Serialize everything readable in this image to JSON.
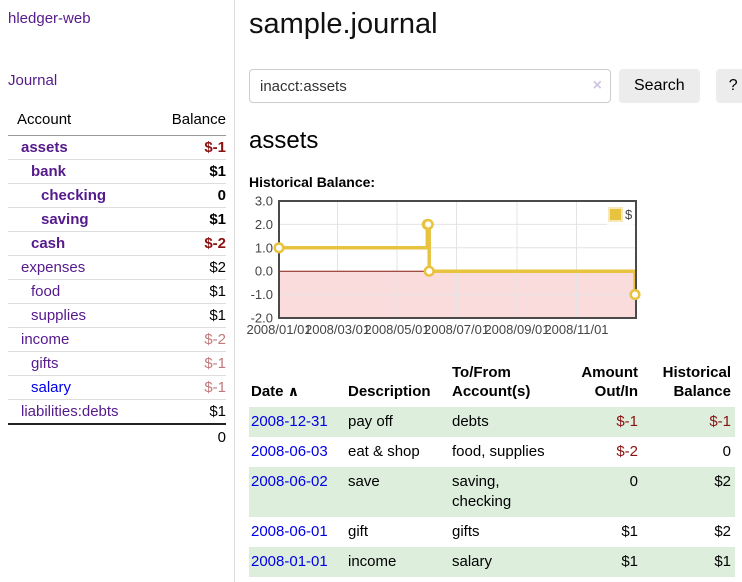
{
  "app": {
    "title": "hledger-web"
  },
  "sidebar": {
    "journal_link": "Journal",
    "accounts_header": {
      "account": "Account",
      "balance": "Balance"
    },
    "accounts": [
      {
        "name": "assets",
        "balance": "$-1",
        "name_class": "acct lvl1 strong",
        "bal_class": "bal neg strong"
      },
      {
        "name": "bank",
        "balance": "$1",
        "name_class": "acct lvl2 strong",
        "bal_class": "bal strong"
      },
      {
        "name": "checking",
        "balance": "0",
        "name_class": "acct lvl3 strong",
        "bal_class": "bal strong"
      },
      {
        "name": "saving",
        "balance": "$1",
        "name_class": "acct lvl3 strong",
        "bal_class": "bal strong"
      },
      {
        "name": "cash",
        "balance": "$-2",
        "name_class": "acct lvl2 strong",
        "bal_class": "bal neg strong"
      },
      {
        "name": "expenses",
        "balance": "$2",
        "name_class": "acct lvl1",
        "bal_class": "bal"
      },
      {
        "name": "food",
        "balance": "$1",
        "name_class": "acct lvl2",
        "bal_class": "bal"
      },
      {
        "name": "supplies",
        "balance": "$1",
        "name_class": "acct lvl2",
        "bal_class": "bal"
      },
      {
        "name": "income",
        "balance": "$-2",
        "name_class": "acct lvl1",
        "bal_class": "bal lightneg"
      },
      {
        "name": "gifts",
        "balance": "$-1",
        "name_class": "acct lvl2",
        "bal_class": "bal lightneg"
      },
      {
        "name": "salary",
        "balance": "$-1",
        "name_class": "acct lvl2 unvisited",
        "bal_class": "bal lightneg"
      },
      {
        "name": "liabilities:debts",
        "balance": "$1",
        "name_class": "acct lvl1",
        "bal_class": "bal"
      }
    ],
    "total": "0"
  },
  "main": {
    "title": "sample.journal",
    "search": {
      "value": "inacct:assets",
      "clear_icon": "×",
      "button": "Search",
      "help_button": "?"
    },
    "account_heading": "assets",
    "chart_label": "Historical Balance:"
  },
  "register": {
    "headers": {
      "date": "Date",
      "sort_icon": "∧",
      "description": "Description",
      "accounts": "To/From Account(s)",
      "amount": "Amount Out/In",
      "balance": "Historical Balance"
    },
    "rows": [
      {
        "date": "2008-12-31",
        "description": "pay off",
        "accounts": "debts",
        "amount": "$-1",
        "amount_class": "amt neg",
        "balance": "$-1",
        "balance_class": "amt neg"
      },
      {
        "date": "2008-06-03",
        "description": "eat & shop",
        "accounts": "food, supplies",
        "amount": "$-2",
        "amount_class": "amt neg",
        "balance": "0",
        "balance_class": "amt"
      },
      {
        "date": "2008-06-02",
        "description": "save",
        "accounts": "saving, checking",
        "amount": "0",
        "amount_class": "amt",
        "balance": "$2",
        "balance_class": "amt"
      },
      {
        "date": "2008-06-01",
        "description": "gift",
        "accounts": "gifts",
        "amount": "$1",
        "amount_class": "amt",
        "balance": "$2",
        "balance_class": "amt"
      },
      {
        "date": "2008-01-01",
        "description": "income",
        "accounts": "salary",
        "amount": "$1",
        "amount_class": "amt",
        "balance": "$1",
        "balance_class": "amt"
      }
    ]
  },
  "chart_data": {
    "type": "line",
    "title": "Historical Balance:",
    "step": true,
    "series": [
      {
        "name": "$",
        "color": "#E8C340",
        "points": [
          [
            "2008-01-01",
            1
          ],
          [
            "2008-06-01",
            2
          ],
          [
            "2008-06-02",
            2
          ],
          [
            "2008-06-03",
            0
          ],
          [
            "2008-12-31",
            -1
          ]
        ]
      }
    ],
    "x_range": [
      "2008-01-01",
      "2009-01-01"
    ],
    "x_ticks": [
      "2008/01/01",
      "2008/03/01",
      "2008/05/01",
      "2008/07/01",
      "2008/09/01",
      "2008/11/01"
    ],
    "y_ticks": [
      3.0,
      2.0,
      1.0,
      0.0,
      -1.0,
      -2.0
    ],
    "ylim": [
      -2,
      3
    ],
    "grid": true,
    "legend_position": "top-right",
    "negative_fill": "#FADCDC",
    "zero_line_color": "#8B1A0F",
    "grid_color": "#E4E4E4",
    "border_color": "#4A4A4A"
  },
  "colors": {
    "link_purple": "#551A8B",
    "link_blue": "#0000E6",
    "negative_dark_red": "#8B1111",
    "negative_light_red": "#C07A7A",
    "row_stripe_green": "#DDEEDD",
    "chart_line_gold": "#E8C340",
    "button_gray": "#ECECEC"
  }
}
